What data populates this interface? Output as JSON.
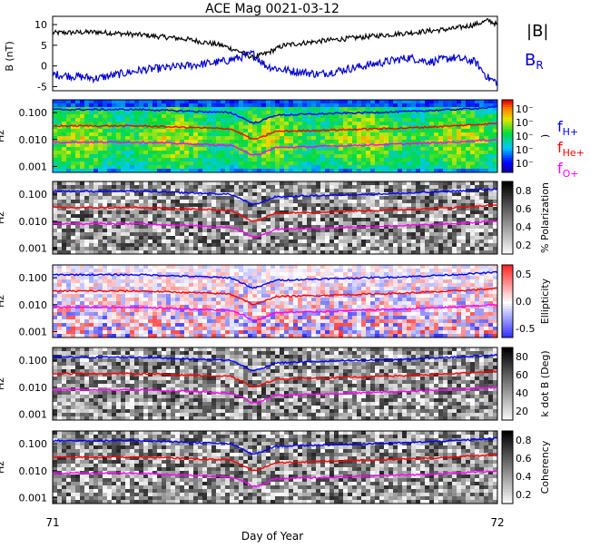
{
  "title": "ACE Mag 0021-03-12",
  "xlabel": "Day of Year",
  "x_ticks": [
    "71",
    "72"
  ],
  "xlim": [
    71,
    72
  ],
  "colors": {
    "total_field": "#000000",
    "radial_field": "#0000cc",
    "f_H": "#0000ff",
    "f_He": "#ff0000",
    "f_O": "#ff00ff"
  },
  "chart_data": [
    {
      "type": "line",
      "ylabel": "B (nT)",
      "ylim": [
        -6,
        12
      ],
      "y_ticks": [
        "10",
        "5",
        "0",
        "-5"
      ],
      "legend": [
        "|B|",
        "B_R"
      ],
      "x": [
        71.0,
        71.1,
        71.2,
        71.3,
        71.38,
        71.42,
        71.45,
        71.48,
        71.52,
        71.6,
        71.7,
        71.8,
        71.85,
        71.9,
        71.95,
        71.98,
        72.0
      ],
      "series": [
        {
          "name": "|B|",
          "values": [
            8,
            8.2,
            7.5,
            6.5,
            5,
            3.5,
            2,
            3,
            5,
            6,
            7,
            8,
            8.5,
            9,
            10,
            11,
            10
          ]
        },
        {
          "name": "B_R",
          "values": [
            -2,
            -3,
            -1,
            0,
            1,
            2,
            3,
            0,
            -1,
            -2,
            0,
            2,
            1,
            2,
            1,
            -3,
            -4
          ]
        }
      ]
    },
    {
      "type": "heatmap",
      "ylabel": "Hz",
      "y_ticks": [
        "0.100",
        "0.010",
        "0.001"
      ],
      "colorbar_ticks": [
        "10⁻",
        "10⁻",
        "10⁻",
        "10⁻",
        "10⁻"
      ],
      "colorbar_label": ")",
      "legend": [
        "f_H+",
        "f_He+",
        "f_O+"
      ],
      "color_scale": "rainbow"
    },
    {
      "type": "heatmap",
      "ylabel": "Hz",
      "y_ticks": [
        "0.100",
        "0.010",
        "0.001"
      ],
      "colorbar_ticks": [
        "0.8",
        "0.6",
        "0.4",
        "0.2"
      ],
      "colorbar_label": "% Polarization",
      "color_scale": "grayscale"
    },
    {
      "type": "heatmap",
      "ylabel": "Hz",
      "y_ticks": [
        "0.100",
        "0.010",
        "0.001"
      ],
      "colorbar_ticks": [
        "0.5",
        "0.0",
        "-0.5"
      ],
      "colorbar_label": "Ellipticity",
      "color_scale": "blue-white-red"
    },
    {
      "type": "heatmap",
      "ylabel": "Hz",
      "y_ticks": [
        "0.100",
        "0.010",
        "0.001"
      ],
      "colorbar_ticks": [
        "80",
        "60",
        "40",
        "20"
      ],
      "colorbar_label": "k dot B (Deg)",
      "color_scale": "grayscale"
    },
    {
      "type": "heatmap",
      "ylabel": "Hz",
      "y_ticks": [
        "0.100",
        "0.010",
        "0.001"
      ],
      "colorbar_ticks": [
        "0.8",
        "0.6",
        "0.4",
        "0.2"
      ],
      "colorbar_label": "Coherency",
      "color_scale": "grayscale"
    }
  ],
  "gyrofrequency_lines": {
    "x": [
      71.0,
      71.2,
      71.4,
      71.43,
      71.45,
      71.47,
      71.5,
      71.6,
      71.8,
      71.9,
      72.0
    ],
    "f_H+": [
      0.13,
      0.13,
      0.1,
      0.06,
      0.04,
      0.05,
      0.08,
      0.09,
      0.11,
      0.13,
      0.16
    ],
    "f_He+": [
      0.032,
      0.032,
      0.025,
      0.015,
      0.01,
      0.012,
      0.02,
      0.022,
      0.027,
      0.032,
      0.04
    ],
    "f_O+": [
      0.008,
      0.008,
      0.006,
      0.004,
      0.0025,
      0.003,
      0.005,
      0.0055,
      0.007,
      0.008,
      0.01
    ]
  }
}
